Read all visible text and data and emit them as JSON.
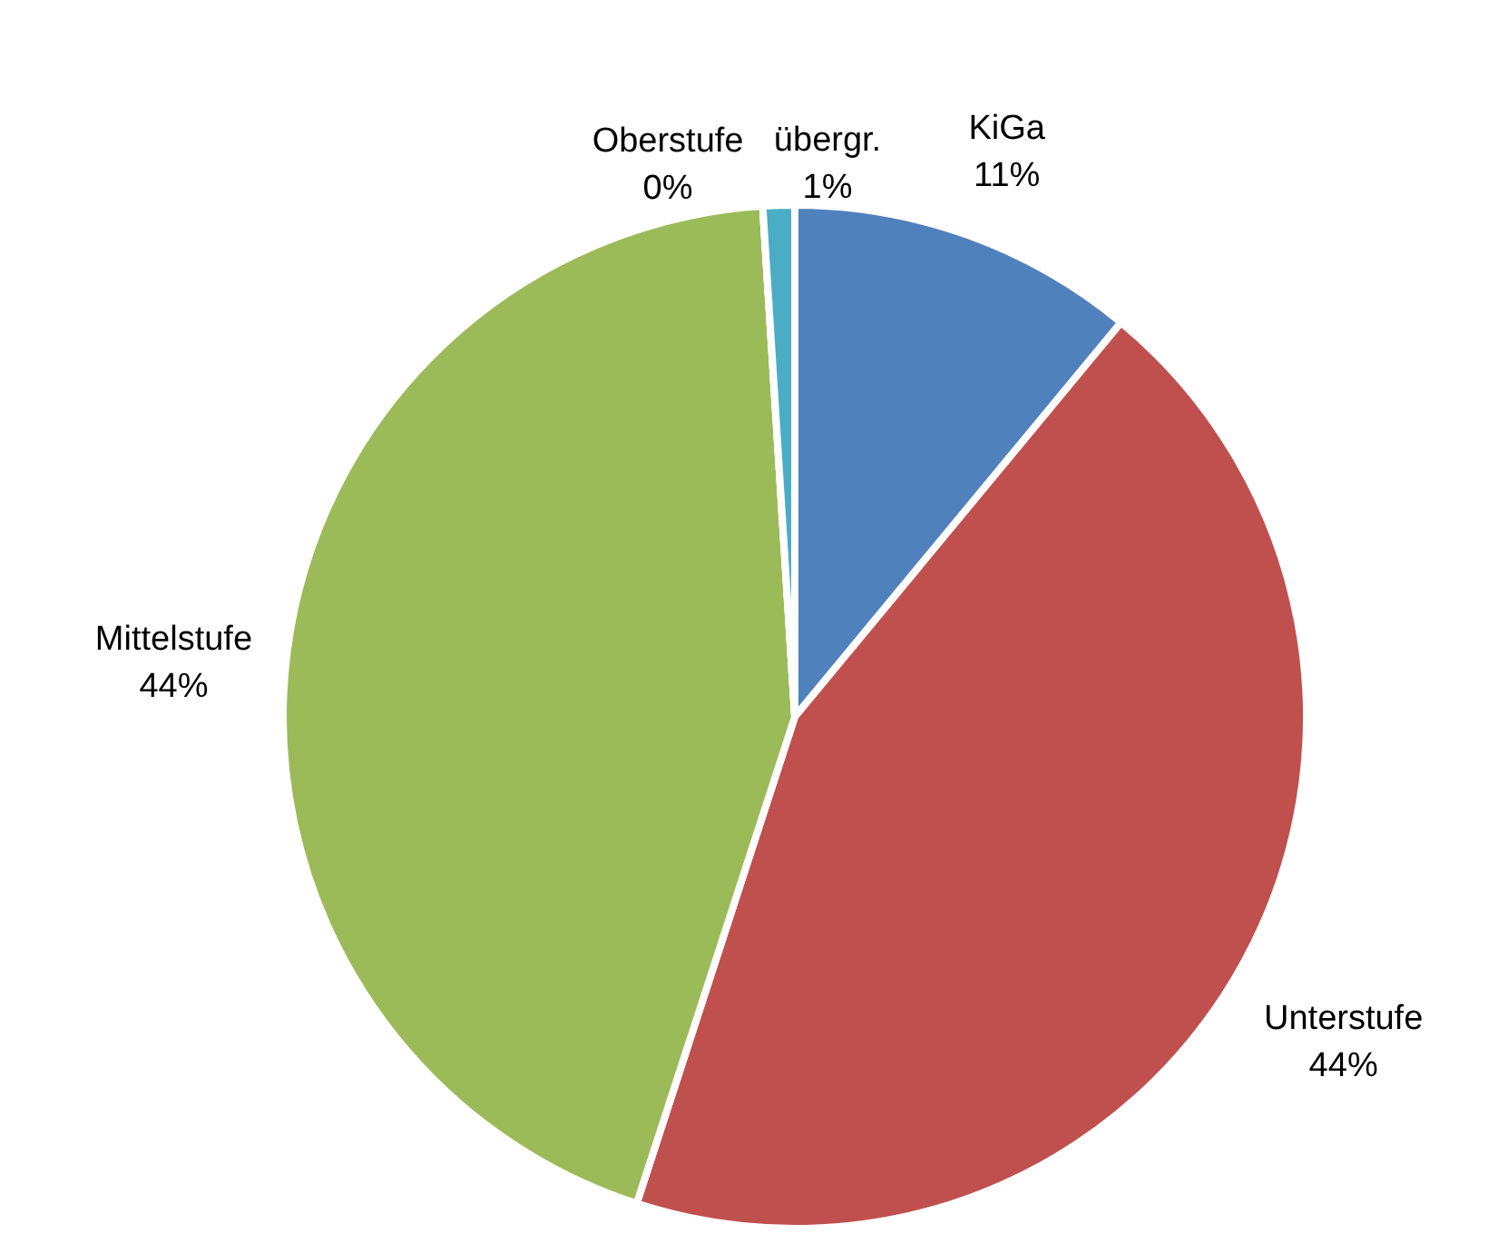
{
  "chart_data": {
    "type": "pie",
    "categories": [
      "KiGa",
      "Unterstufe",
      "Mittelstufe",
      "Oberstufe",
      "übergr."
    ],
    "values": [
      11,
      44,
      44,
      0,
      1
    ],
    "colors": [
      "#4f81bd",
      "#c0504d",
      "#9bbb59",
      "#8064a2",
      "#4bacc6"
    ],
    "value_labels": [
      "11%",
      "44%",
      "44%",
      "0%",
      "1%"
    ],
    "legend": false
  }
}
